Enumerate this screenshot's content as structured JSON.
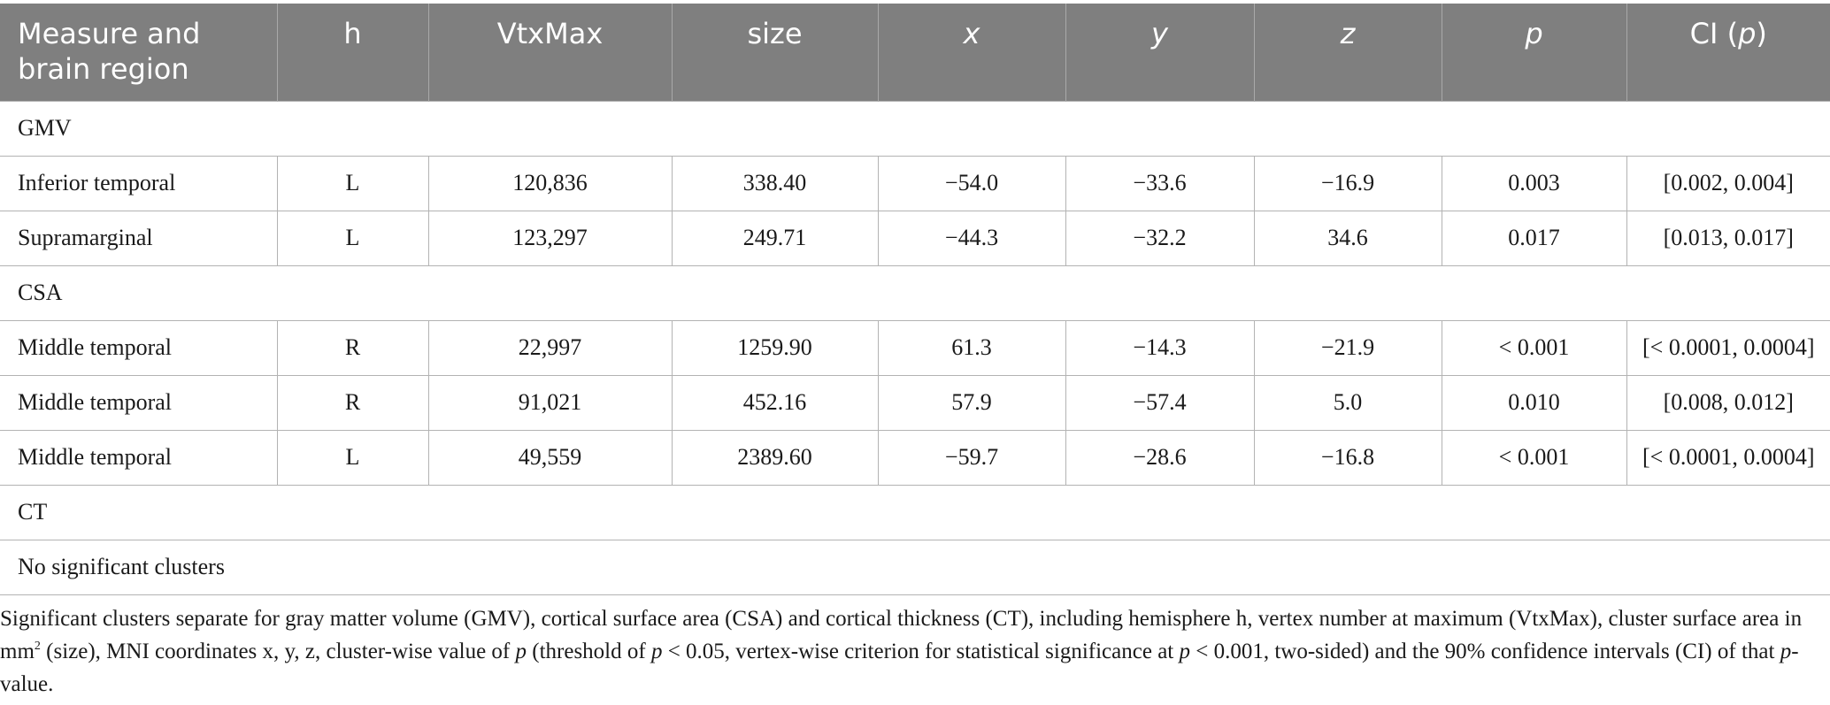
{
  "table": {
    "headers": [
      {
        "label": "Measure and brain region",
        "italic": false
      },
      {
        "label": "h",
        "italic": false
      },
      {
        "label": "VtxMax",
        "italic": false
      },
      {
        "label": "size",
        "italic": false
      },
      {
        "label": "x",
        "italic": true
      },
      {
        "label": "y",
        "italic": true
      },
      {
        "label": "z",
        "italic": true
      },
      {
        "label": "p",
        "italic": true
      }
    ],
    "ci_header": {
      "prefix": "CI (",
      "italic_part": "p",
      "suffix": ")"
    },
    "sections": [
      {
        "label": "GMV",
        "rows": [
          [
            "Inferior temporal",
            "L",
            "120,836",
            "338.40",
            "−54.0",
            "−33.6",
            "−16.9",
            "0.003",
            "[0.002, 0.004]"
          ],
          [
            "Supramarginal",
            "L",
            "123,297",
            "249.71",
            "−44.3",
            "−32.2",
            "34.6",
            "0.017",
            "[0.013, 0.017]"
          ]
        ]
      },
      {
        "label": "CSA",
        "rows": [
          [
            "Middle temporal",
            "R",
            "22,997",
            "1259.90",
            "61.3",
            "−14.3",
            "−21.9",
            "< 0.001",
            "[< 0.0001, 0.0004]"
          ],
          [
            "Middle temporal",
            "R",
            "91,021",
            "452.16",
            "57.9",
            "−57.4",
            "5.0",
            "0.010",
            "[0.008, 0.012]"
          ],
          [
            "Middle temporal",
            "L",
            "49,559",
            "2389.60",
            "−59.7",
            "−28.6",
            "−16.8",
            "< 0.001",
            "[< 0.0001, 0.0004]"
          ]
        ]
      },
      {
        "label": "CT",
        "rows": []
      }
    ],
    "empty_note": "No significant clusters"
  },
  "footnote": {
    "t1": "Significant clusters separate for gray matter volume (GMV), cortical surface area (CSA) and cortical thickness (CT), including hemisphere h, vertex number at maximum (VtxMax), cluster surface area in mm",
    "sup": "2",
    "t2": " (size), MNI coordinates x, y, z, cluster-wise value of ",
    "p1": "p",
    "t3": " (threshold of ",
    "p2": "p",
    "t4": " < 0.05, vertex-wise criterion for statistical significance at ",
    "p3": "p",
    "t5": " < 0.001, two-sided) and the 90% confidence intervals (CI) of that ",
    "p4": "p",
    "t6": "-value."
  }
}
